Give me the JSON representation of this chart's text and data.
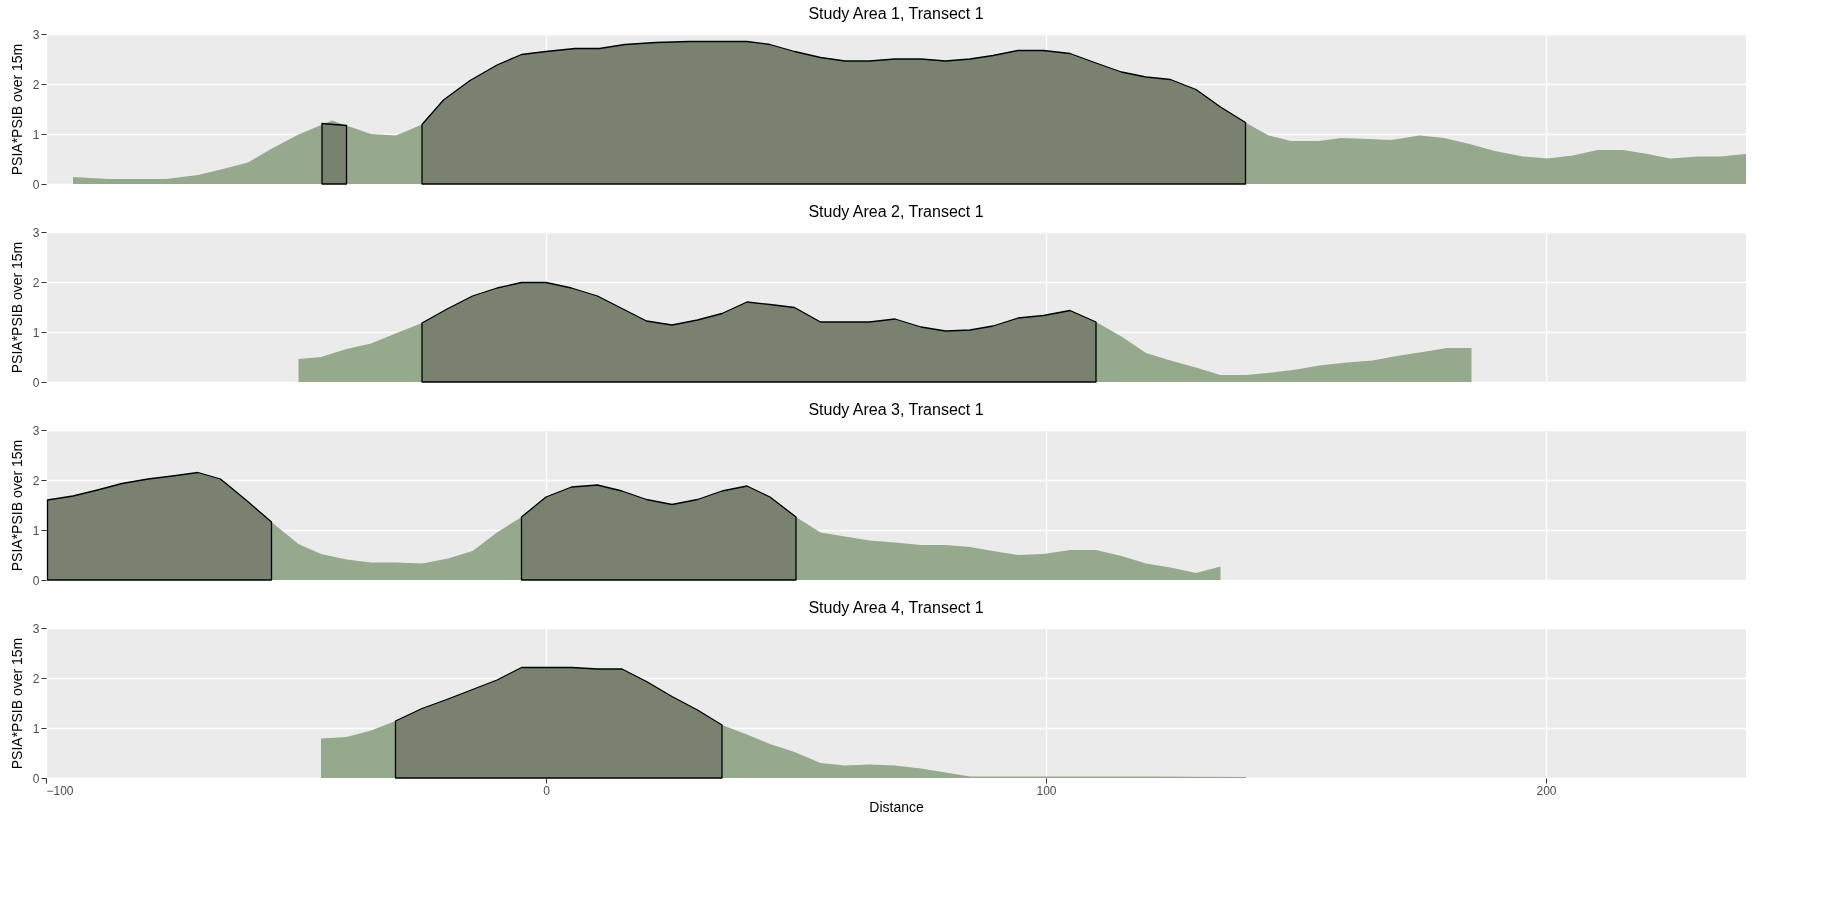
{
  "chart_data": [
    {
      "type": "area",
      "title": "Study Area 1, Transect 1",
      "ylabel": "PSIA*PSIB over 15m",
      "xlim": [
        -100,
        240
      ],
      "xticks": [
        -100,
        0,
        100,
        200
      ],
      "ylim": [
        0,
        3
      ],
      "yticks": [
        0,
        1,
        2,
        3
      ],
      "grid": true,
      "tick_labels": "y",
      "series": [
        {
          "color": "#95aa8d",
          "x": [
            -94.6,
            -87.5,
            -76,
            -69.6,
            -65,
            -59.6,
            -55,
            -49.5,
            -42.8,
            -35,
            -30,
            -24.8,
            -20.5,
            -15.2,
            -9.8,
            -4.9,
            0,
            5.8,
            10.7,
            15.8,
            21.9,
            28.6,
            35.2,
            40.2,
            44.8,
            49.7,
            54.9,
            59.8,
            64.7,
            69.8,
            75,
            79.9,
            84.8,
            89.4,
            94.4,
            99.5,
            104.8,
            110,
            115.1,
            120,
            124.9,
            130,
            134.9,
            139.9,
            144.5,
            149,
            154.6,
            159,
            164.6,
            169,
            174.7,
            179.6,
            184.7,
            189.8,
            195.4,
            200.3,
            205.4,
            210.3,
            215.4,
            220.3,
            224.8,
            230.4,
            234.9,
            240
          ],
          "values": [
            0.14,
            0.1,
            0.1,
            0.18,
            0.29,
            0.43,
            0.7,
            0.99,
            1.27,
            1.0,
            0.97,
            1.19,
            null,
            null,
            null,
            null,
            null,
            null,
            null,
            null,
            null,
            null,
            null,
            null,
            null,
            null,
            null,
            null,
            null,
            null,
            null,
            null,
            null,
            null,
            null,
            null,
            null,
            null,
            null,
            null,
            null,
            null,
            null,
            1.23,
            0.97,
            0.86,
            0.86,
            0.92,
            0.9,
            0.88,
            0.97,
            0.92,
            0.8,
            0.66,
            0.55,
            0.51,
            0.57,
            0.68,
            0.68,
            0.6,
            0.51,
            0.55,
            0.55,
            0.6
          ]
        },
        {
          "color": "#78826f",
          "x": [
            -44.8,
            -39.9
          ],
          "values": [
            1.21,
            1.17
          ]
        },
        {
          "color": "#78826f",
          "x": [
            -24.8,
            -20.5,
            -15.2,
            -9.8,
            -4.9,
            0,
            5.8,
            10.7,
            15.8,
            21.9,
            28.6,
            35.2,
            40.2,
            44.8,
            49.7,
            54.9,
            59.8,
            64.7,
            69.8,
            75,
            79.9,
            84.8,
            89.4,
            94.4,
            99.5,
            104.8,
            110,
            115.1,
            120,
            124.9,
            130,
            134.9,
            139.9
          ],
          "values": [
            1.19,
            1.68,
            2.07,
            2.38,
            2.59,
            2.65,
            2.71,
            2.71,
            2.79,
            2.83,
            2.85,
            2.85,
            2.85,
            2.79,
            2.65,
            2.53,
            2.46,
            2.46,
            2.5,
            2.5,
            2.46,
            2.5,
            2.57,
            2.67,
            2.67,
            2.61,
            2.42,
            2.24,
            2.14,
            2.09,
            1.89,
            1.54,
            1.23
          ]
        }
      ]
    },
    {
      "type": "area",
      "title": "Study Area 2, Transect 1",
      "ylabel": "PSIA*PSIB over 15m",
      "xlim": [
        -100,
        240
      ],
      "xticks": [
        -100,
        0,
        100,
        200
      ],
      "ylim": [
        0,
        3
      ],
      "yticks": [
        0,
        1,
        2,
        3
      ],
      "grid": true,
      "tick_labels": "y",
      "series": [
        {
          "color": "#95aa8d",
          "x": [
            -49.5,
            -45,
            -39.9,
            -35,
            -30.1,
            -24.8,
            -19.6,
            -14.7,
            -9.8,
            -4.9,
            0,
            5.1,
            10.3,
            15.2,
            20.1,
            25.2,
            30.3,
            35.2,
            40.2,
            44.8,
            49.7,
            54.9,
            59.8,
            64.7,
            69.8,
            75,
            79.9,
            84.8,
            89.4,
            94.4,
            99.5,
            104.8,
            110,
            115.1,
            120,
            124.9,
            130,
            134.9,
            140,
            145.2,
            150.1,
            154.6,
            160.2,
            165.3,
            170.2,
            175.3,
            180.2,
            185.1
          ],
          "values": [
            0.46,
            0.5,
            0.66,
            0.77,
            0.97,
            1.18,
            null,
            null,
            null,
            null,
            null,
            null,
            null,
            null,
            null,
            null,
            null,
            null,
            null,
            null,
            null,
            null,
            null,
            null,
            null,
            null,
            null,
            null,
            null,
            null,
            null,
            null,
            1.2,
            0.91,
            0.58,
            0.43,
            0.29,
            0.14,
            0.14,
            0.19,
            0.25,
            0.33,
            0.39,
            0.43,
            0.52,
            0.6,
            0.68,
            0.68
          ]
        },
        {
          "color": "#78826f",
          "x": [
            -24.8,
            -19.6,
            -14.7,
            -9.8,
            -4.9,
            0,
            5.1,
            10.3,
            15.2,
            20.1,
            25.2,
            30.3,
            35.2,
            40.2,
            44.8,
            49.7,
            54.9,
            59.8,
            64.7,
            69.8,
            75,
            79.9,
            84.8,
            89.4,
            94.4,
            99.5,
            104.8,
            110
          ],
          "values": [
            1.18,
            1.47,
            1.72,
            1.88,
            1.99,
            1.99,
            1.88,
            1.72,
            1.47,
            1.22,
            1.14,
            1.24,
            1.37,
            1.6,
            1.55,
            1.49,
            1.2,
            1.2,
            1.2,
            1.26,
            1.1,
            1.02,
            1.04,
            1.12,
            1.28,
            1.33,
            1.43,
            1.2
          ]
        }
      ]
    },
    {
      "type": "area",
      "title": "Study Area 3, Transect 1",
      "ylabel": "PSIA*PSIB over 15m",
      "xlim": [
        -100,
        240
      ],
      "xticks": [
        -100,
        0,
        100,
        200
      ],
      "ylim": [
        0,
        3
      ],
      "yticks": [
        0,
        1,
        2,
        3
      ],
      "grid": true,
      "tick_labels": "y",
      "series": [
        {
          "color": "#95aa8d",
          "x": [
            -54.9,
            -49.5,
            -45,
            -39.9,
            -35,
            -30,
            -24.8,
            -19.6,
            -14.7,
            -9.8,
            -4.9,
            0,
            5.1,
            10.3,
            15.2,
            20.1,
            25.2,
            30.3,
            35.2,
            40.2,
            44.8,
            50,
            54.9,
            59.8,
            64.7,
            69.8,
            75,
            79.9,
            84.8,
            89.4,
            94.4,
            99.5,
            104.8,
            110,
            115.1,
            120,
            124.9,
            130,
            134.9
          ],
          "values": [
            1.16,
            0.72,
            0.52,
            0.41,
            0.35,
            0.35,
            0.33,
            0.43,
            0.58,
            0.95,
            1.26,
            null,
            null,
            null,
            null,
            null,
            null,
            null,
            null,
            null,
            null,
            1.26,
            0.95,
            0.87,
            0.79,
            0.75,
            0.7,
            0.7,
            0.66,
            0.58,
            0.5,
            0.52,
            0.6,
            0.6,
            0.48,
            0.33,
            0.25,
            0.14,
            0.27
          ]
        },
        {
          "color": "#78826f",
          "x": [
            -99.7,
            -94.6,
            -89.7,
            -84.8,
            -79.6,
            -74.7,
            -69.6,
            -65.1,
            -60,
            -54.9
          ],
          "values": [
            1.6,
            1.68,
            1.8,
            1.93,
            2.02,
            2.08,
            2.15,
            2.02,
            1.6,
            1.16
          ]
        },
        {
          "color": "#78826f",
          "x": [
            -4.9,
            0,
            5.1,
            10.3,
            15.2,
            20.1,
            25.2,
            30.3,
            35.2,
            40.2,
            44.8,
            50
          ],
          "values": [
            1.26,
            1.66,
            1.86,
            1.9,
            1.78,
            1.61,
            1.51,
            1.61,
            1.78,
            1.88,
            1.66,
            1.26
          ]
        }
      ]
    },
    {
      "type": "area",
      "title": "Study Area 4, Transect 1",
      "xlabel": "Distance",
      "ylabel": "PSIA*PSIB over 15m",
      "xlim": [
        -100,
        240
      ],
      "xticks": [
        -100,
        0,
        100,
        200
      ],
      "ylim": [
        0,
        3
      ],
      "yticks": [
        0,
        1,
        2,
        3
      ],
      "grid": true,
      "series": [
        {
          "color": "#95aa8d",
          "x": [
            -45,
            -39.9,
            -35,
            -30.1,
            -24.8,
            -19.6,
            -14.7,
            -9.8,
            -4.9,
            0,
            5.1,
            10.3,
            15.2,
            20.1,
            25.2,
            30.3,
            35.2,
            40.2,
            44.8,
            49.7,
            54.9,
            59.8,
            64.7,
            69.8,
            75,
            79.9,
            84.8,
            89.4,
            99.5,
            120,
            140
          ],
          "values": [
            0.79,
            0.82,
            0.95,
            1.14,
            null,
            null,
            null,
            null,
            null,
            null,
            null,
            null,
            null,
            null,
            null,
            null,
            1.06,
            0.87,
            0.68,
            0.52,
            0.3,
            0.25,
            0.27,
            0.25,
            0.19,
            0.11,
            0.03,
            0.03,
            0.03,
            0.03,
            0.02
          ]
        },
        {
          "color": "#78826f",
          "x": [
            -30.1,
            -24.8,
            -19.6,
            -14.7,
            -9.8,
            -4.9,
            0,
            5.1,
            10.3,
            15.2,
            20.1,
            25.2,
            30.3,
            35.2
          ],
          "values": [
            1.14,
            1.39,
            1.58,
            1.77,
            1.96,
            2.21,
            2.21,
            2.21,
            2.18,
            2.18,
            1.93,
            1.63,
            1.36,
            1.06
          ]
        }
      ]
    }
  ]
}
